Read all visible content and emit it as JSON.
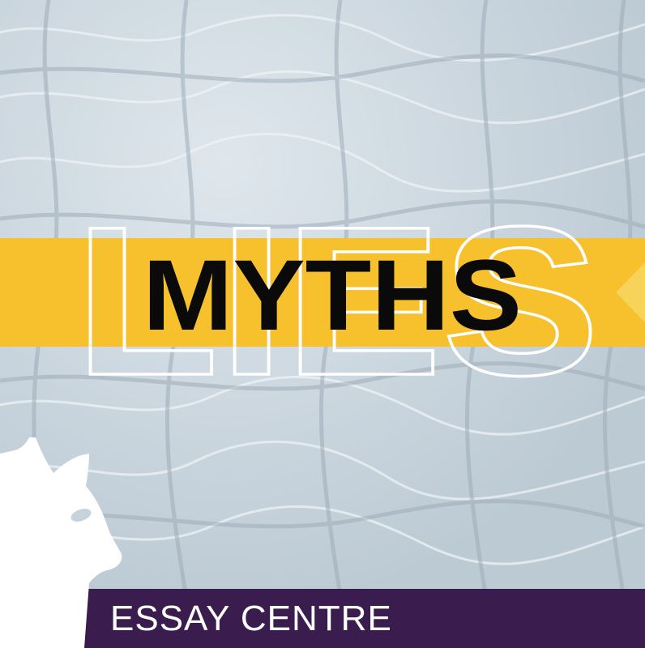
{
  "graphic": {
    "outline_word": "LIES",
    "main_word": "MYTHS",
    "footer_label": "ESSAY CENTRE"
  },
  "colors": {
    "background": "#c7d3dc",
    "band": "#f6c12d",
    "footer": "#3a1d4e",
    "outline_text": "#ffffff",
    "main_text": "#0a0a0a",
    "mascot": "#ffffff"
  },
  "icons": {
    "mascot": "alpaca-silhouette-icon"
  }
}
